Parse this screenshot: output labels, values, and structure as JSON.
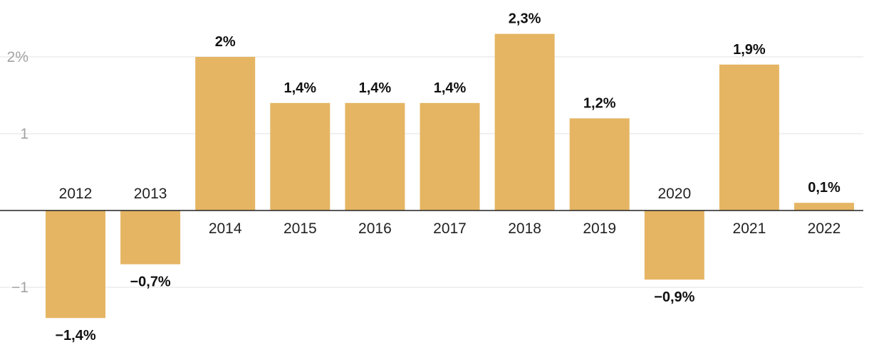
{
  "chart_data": {
    "type": "bar",
    "categories": [
      "2012",
      "2013",
      "2014",
      "2015",
      "2016",
      "2017",
      "2018",
      "2019",
      "2020",
      "2021",
      "2022"
    ],
    "values": [
      -1.4,
      -0.7,
      2.0,
      1.4,
      1.4,
      1.4,
      2.3,
      1.2,
      -0.9,
      1.9,
      0.1
    ],
    "data_labels": [
      "−1,4%",
      "−0,7%",
      "2%",
      "1,4%",
      "1,4%",
      "1,4%",
      "2,3%",
      "1,2%",
      "−0,9%",
      "1,9%",
      "0,1%"
    ],
    "y_ticks": [
      -1,
      1,
      2
    ],
    "y_tick_labels": [
      "−1",
      "1",
      "2%"
    ],
    "ylim": [
      -1.65,
      2.75
    ],
    "grid": true,
    "bar_color": "#e5b563",
    "title": "",
    "xlabel": "",
    "ylabel": ""
  }
}
